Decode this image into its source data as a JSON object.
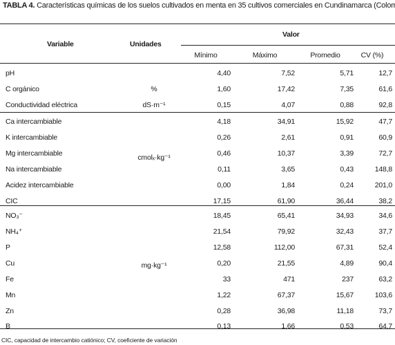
{
  "caption": {
    "label": "TABLA 4.",
    "text": " Características químicas de los suelos cultivados en menta en 35 cultivos comerciales en Cundinamarca (Colombia)."
  },
  "headers": {
    "variable": "Variable",
    "unidades": "Unidades",
    "valor": "Valor",
    "minimo": "Mínimo",
    "maximo": "Máximo",
    "promedio": "Promedio",
    "cv": "CV (%)"
  },
  "units": {
    "c_organico": "%",
    "conductividad": "dS·m⁻¹",
    "cations": "cmolₓ·kg⁻¹",
    "micros": "mg·kg⁻¹"
  },
  "rows": [
    {
      "var": "pH",
      "min": "4,40",
      "max": "7,52",
      "prom": "5,71",
      "cv": "12,7"
    },
    {
      "var": "C orgánico",
      "min": "1,60",
      "max": "17,42",
      "prom": "7,35",
      "cv": "61,6"
    },
    {
      "var": "Conductividad eléctrica",
      "min": "0,15",
      "max": "4,07",
      "prom": "0,88",
      "cv": "92,8"
    },
    {
      "var": "Ca intercambiable",
      "min": "4,18",
      "max": "34,91",
      "prom": "15,92",
      "cv": "47,7"
    },
    {
      "var": "K intercambiable",
      "min": "0,26",
      "max": "2,61",
      "prom": "0,91",
      "cv": "60,9"
    },
    {
      "var": "Mg intercambiable",
      "min": "0,46",
      "max": "10,37",
      "prom": "3,39",
      "cv": "72,7"
    },
    {
      "var": "Na intercambiable",
      "min": "0,11",
      "max": "3,65",
      "prom": "0,43",
      "cv": "148,8"
    },
    {
      "var": "Acidez intercambiable",
      "min": "0,00",
      "max": "1,84",
      "prom": "0,24",
      "cv": "201,0"
    },
    {
      "var": "CIC",
      "min": "17,15",
      "max": "61,90",
      "prom": "36,44",
      "cv": "38,2"
    },
    {
      "var": "NO₃⁻",
      "min": "18,45",
      "max": "65,41",
      "prom": "34,93",
      "cv": "34,6"
    },
    {
      "var": "NH₄⁺",
      "min": "21,54",
      "max": "79,92",
      "prom": "32,43",
      "cv": "37,7"
    },
    {
      "var": "P",
      "min": "12,58",
      "max": "112,00",
      "prom": "67,31",
      "cv": "52,4"
    },
    {
      "var": "Cu",
      "min": "0,20",
      "max": "21,55",
      "prom": "4,89",
      "cv": "90,4"
    },
    {
      "var": "Fe",
      "min": "33",
      "max": "471",
      "prom": "237",
      "cv": "63,2"
    },
    {
      "var": "Mn",
      "min": "1,22",
      "max": "67,37",
      "prom": "15,67",
      "cv": "103,6"
    },
    {
      "var": "Zn",
      "min": "0,28",
      "max": "36,98",
      "prom": "11,18",
      "cv": "73,7"
    },
    {
      "var": "B",
      "min": "0,13",
      "max": "1,66",
      "prom": "0,53",
      "cv": "64,7"
    }
  ],
  "footer": "CIC, capacidad de intercambio catiónico; CV, coeficiente de variación"
}
